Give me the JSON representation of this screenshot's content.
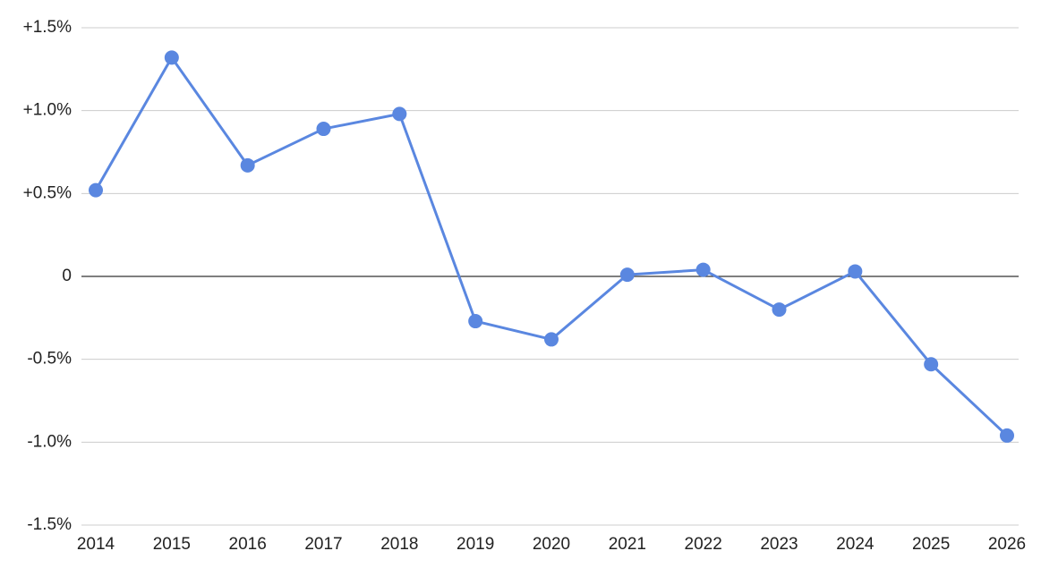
{
  "chart_data": {
    "type": "line",
    "categories": [
      "2014",
      "2015",
      "2016",
      "2017",
      "2018",
      "2019",
      "2020",
      "2021",
      "2022",
      "2023",
      "2024",
      "2025",
      "2026"
    ],
    "values": [
      0.52,
      1.32,
      0.67,
      0.89,
      0.98,
      -0.27,
      -0.38,
      0.01,
      0.04,
      -0.2,
      0.03,
      -0.53,
      -0.96
    ],
    "color": "#5a87e0",
    "ylim": [
      -1.5,
      1.5
    ],
    "yticks": [
      {
        "value": -1.5,
        "label": "-1.5%"
      },
      {
        "value": -1.0,
        "label": "-1.0%"
      },
      {
        "value": -0.5,
        "label": "-0.5%"
      },
      0,
      {
        "value": 0.5,
        "label": "+0.5%"
      },
      {
        "value": 1.0,
        "label": "+1.0%"
      },
      {
        "value": 1.5,
        "label": "+1.5%"
      }
    ],
    "grid": true
  }
}
